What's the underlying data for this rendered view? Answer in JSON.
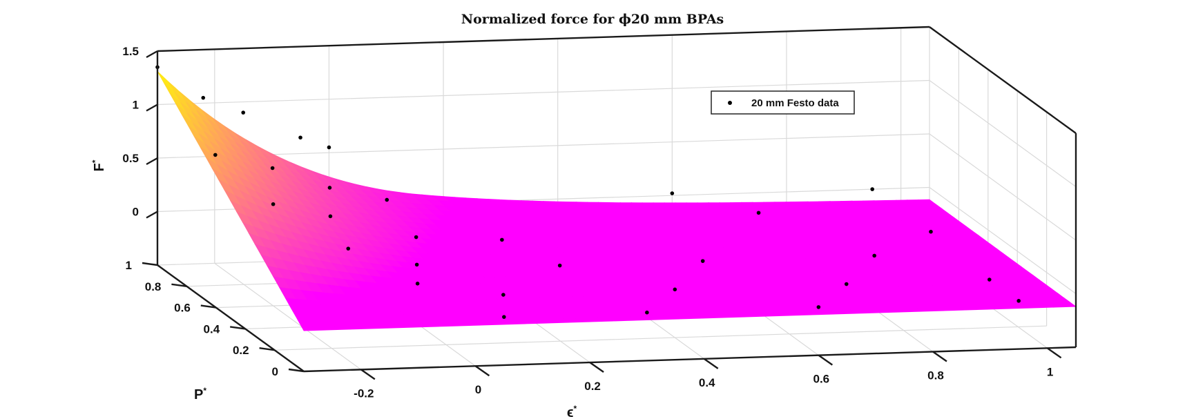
{
  "chart_data": {
    "type": "surface3d",
    "title": "Normalized force for ϕ20 mm BPAs",
    "xlabel": "ϵ",
    "xlabel_sup": "*",
    "ylabel": "P",
    "ylabel_sup": "*",
    "zlabel": "F",
    "zlabel_sup": "*",
    "xlim": [
      -0.3,
      1.05
    ],
    "ylim": [
      0,
      1
    ],
    "zlim": [
      -0.5,
      1.5
    ],
    "xticks": [
      "-0.2",
      "0",
      "0.2",
      "0.4",
      "0.6",
      "0.8",
      "1"
    ],
    "yticks": [
      "0",
      "0.2",
      "0.4",
      "0.6",
      "0.8",
      "1"
    ],
    "zticks": [
      "0",
      "0.5",
      "1",
      "1.5"
    ],
    "grid": true,
    "surface_colormap": [
      "#ff00ff",
      "#ffff00"
    ],
    "legend": {
      "position": "upper-right",
      "entries": [
        "20 mm Festo data"
      ]
    },
    "series": [
      {
        "name": "20 mm Festo data",
        "marker": "dot",
        "color": "#000000",
        "points": [
          {
            "x": -0.3,
            "y": 1.0,
            "z": 1.35
          },
          {
            "x": -0.22,
            "y": 1.0,
            "z": 1.05
          },
          {
            "x": -0.15,
            "y": 1.0,
            "z": 0.9
          },
          {
            "x": -0.05,
            "y": 1.0,
            "z": 0.65
          },
          {
            "x": 0.0,
            "y": 1.0,
            "z": 0.55
          },
          {
            "x": 0.6,
            "y": 1.0,
            "z": 0.02
          },
          {
            "x": 0.95,
            "y": 1.0,
            "z": 0.0
          },
          {
            "x": -0.25,
            "y": 0.8,
            "z": 0.72
          },
          {
            "x": -0.15,
            "y": 0.8,
            "z": 0.58
          },
          {
            "x": -0.05,
            "y": 0.8,
            "z": 0.38
          },
          {
            "x": 0.05,
            "y": 0.8,
            "z": 0.25
          },
          {
            "x": 0.7,
            "y": 0.8,
            "z": 0.02
          },
          {
            "x": -0.2,
            "y": 0.6,
            "z": 0.45
          },
          {
            "x": -0.1,
            "y": 0.6,
            "z": 0.32
          },
          {
            "x": 0.05,
            "y": 0.6,
            "z": 0.1
          },
          {
            "x": 0.2,
            "y": 0.6,
            "z": 0.05
          },
          {
            "x": 0.95,
            "y": 0.6,
            "z": 0.0
          },
          {
            "x": -0.12,
            "y": 0.4,
            "z": 0.22
          },
          {
            "x": 0.0,
            "y": 0.4,
            "z": 0.05
          },
          {
            "x": 0.25,
            "y": 0.4,
            "z": 0.0
          },
          {
            "x": 0.5,
            "y": 0.4,
            "z": 0.0
          },
          {
            "x": 0.8,
            "y": 0.4,
            "z": 0.0
          },
          {
            "x": -0.05,
            "y": 0.2,
            "z": 0.08
          },
          {
            "x": 0.1,
            "y": 0.2,
            "z": -0.05
          },
          {
            "x": 0.4,
            "y": 0.2,
            "z": -0.05
          },
          {
            "x": 0.7,
            "y": 0.2,
            "z": -0.05
          },
          {
            "x": 0.95,
            "y": 0.2,
            "z": -0.05
          },
          {
            "x": 0.05,
            "y": 0.0,
            "z": -0.05
          },
          {
            "x": 0.3,
            "y": 0.0,
            "z": -0.05
          },
          {
            "x": 0.6,
            "y": 0.0,
            "z": -0.05
          },
          {
            "x": 0.95,
            "y": 0.0,
            "z": -0.05
          }
        ]
      }
    ]
  }
}
